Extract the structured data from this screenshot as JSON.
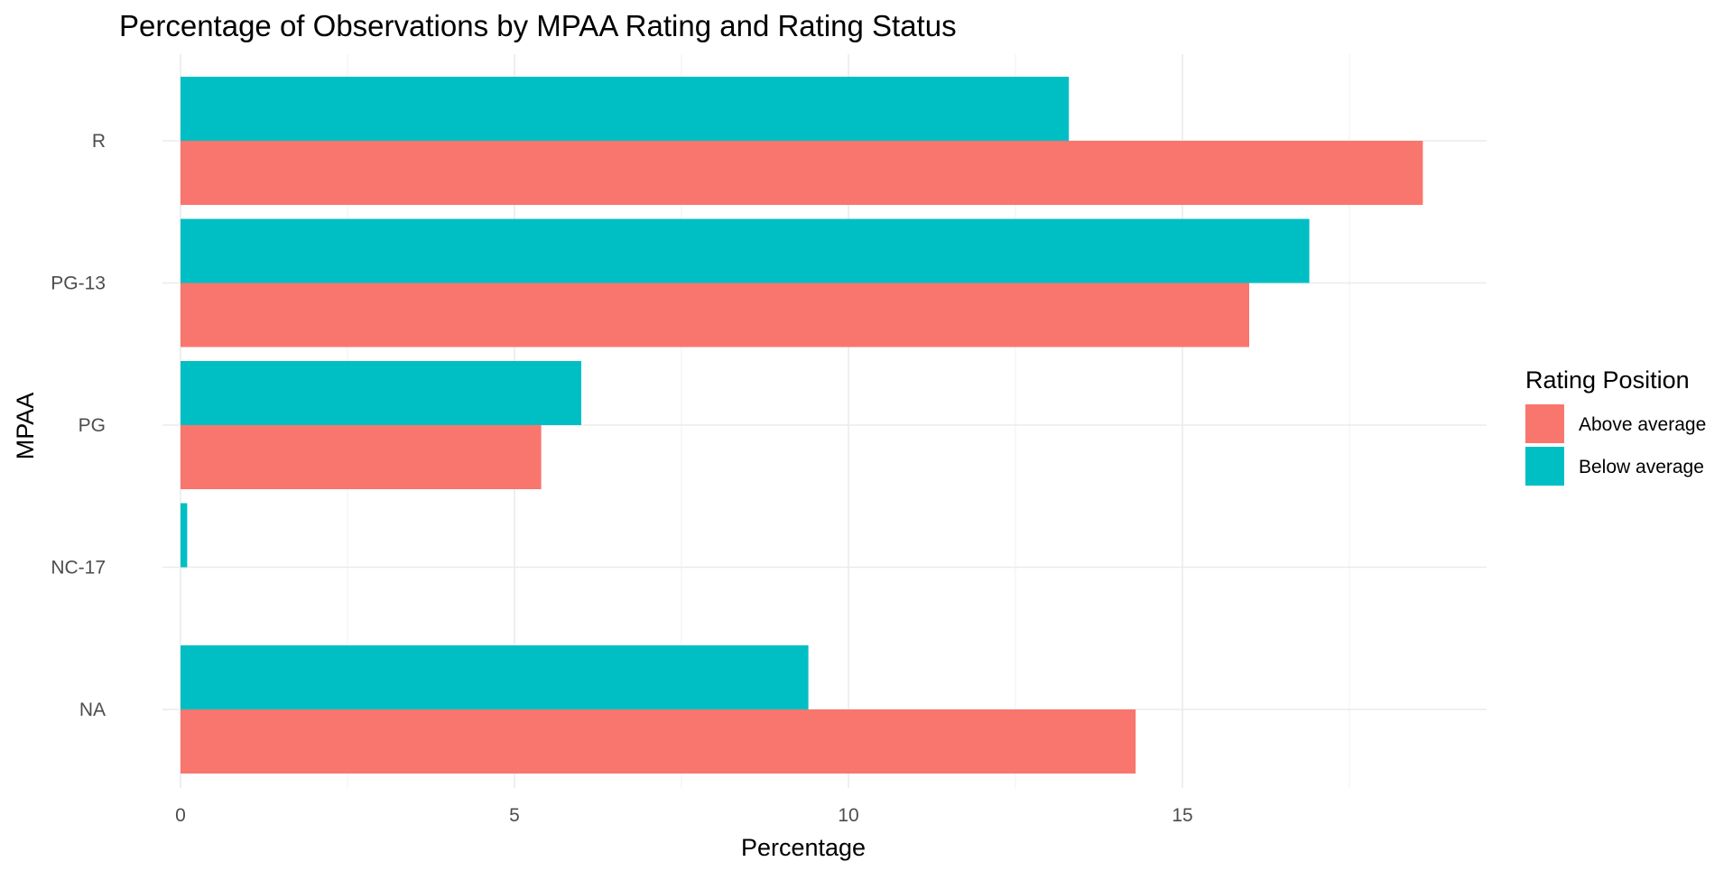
{
  "chart_data": {
    "type": "bar",
    "orientation": "horizontal",
    "title": "Percentage of Observations by MPAA Rating and Rating Status",
    "xlabel": "Percentage",
    "ylabel": "MPAA",
    "categories": [
      "R",
      "PG-13",
      "PG",
      "NC-17",
      "NA"
    ],
    "x_ticks": [
      0,
      5,
      10,
      15
    ],
    "xlim": [
      0,
      19.5
    ],
    "grid": true,
    "legend": {
      "title": "Rating Position",
      "position": "right"
    },
    "series": [
      {
        "name": "Above average",
        "color": "#F8766D",
        "values": [
          18.6,
          16.0,
          5.4,
          null,
          14.3
        ]
      },
      {
        "name": "Below average",
        "color": "#00BFC4",
        "values": [
          13.3,
          16.9,
          6.0,
          0.1,
          9.4
        ]
      }
    ]
  }
}
